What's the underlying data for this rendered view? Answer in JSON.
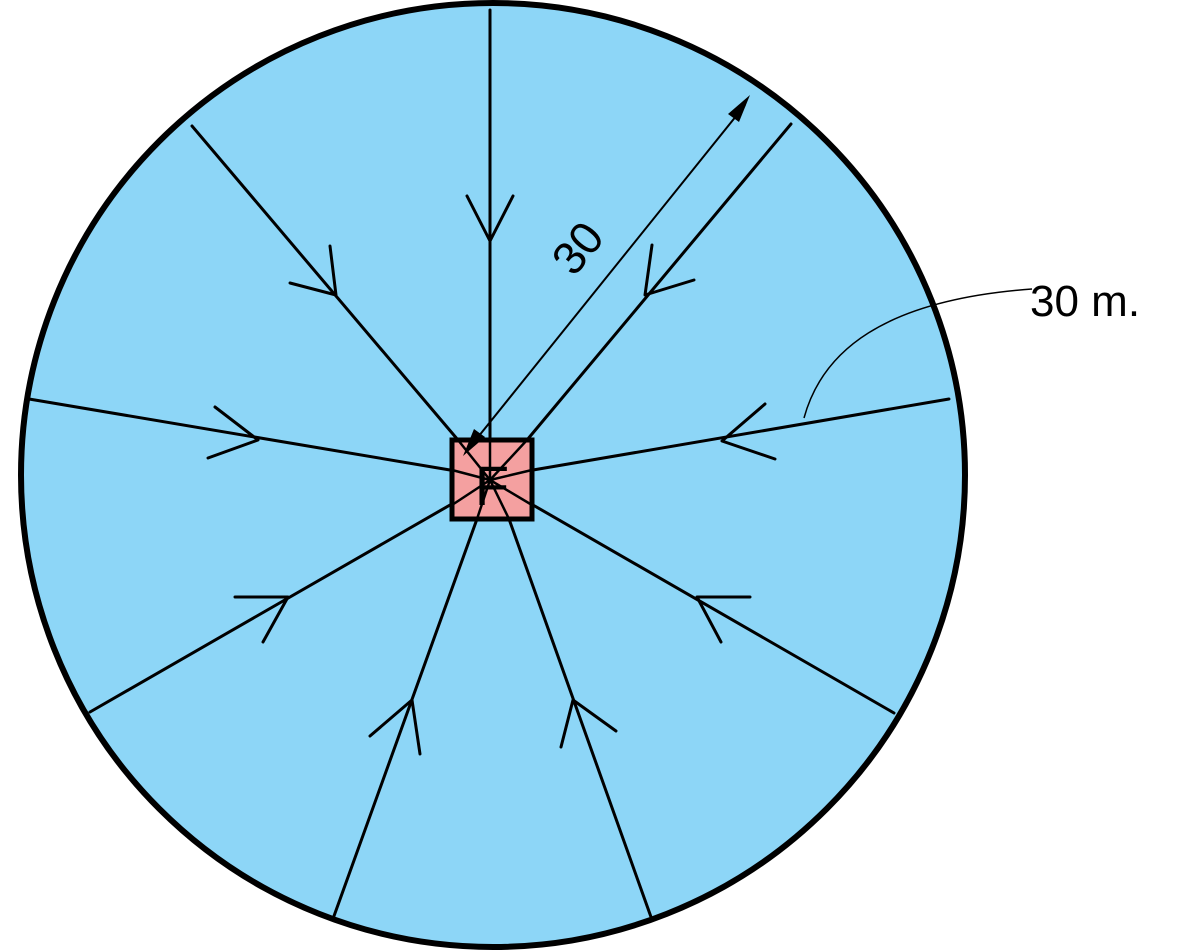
{
  "diagram": {
    "center_label": "F",
    "dimension_label": "30",
    "callout_label": "30 m.",
    "colors": {
      "circle_fill": "#8dd6f7",
      "circle_stroke": "#000000",
      "center_fill": "#f4a0a0",
      "line": "#000000"
    },
    "radial_flow_lines": [
      {
        "direction": "N",
        "flow": "inward"
      },
      {
        "direction": "NE",
        "flow": "inward"
      },
      {
        "direction": "E",
        "flow": "inward"
      },
      {
        "direction": "SE",
        "flow": "inward"
      },
      {
        "direction": "SSE",
        "flow": "inward"
      },
      {
        "direction": "SSW",
        "flow": "inward"
      },
      {
        "direction": "SW",
        "flow": "inward"
      },
      {
        "direction": "W",
        "flow": "inward"
      },
      {
        "direction": "NW",
        "flow": "inward"
      }
    ]
  }
}
